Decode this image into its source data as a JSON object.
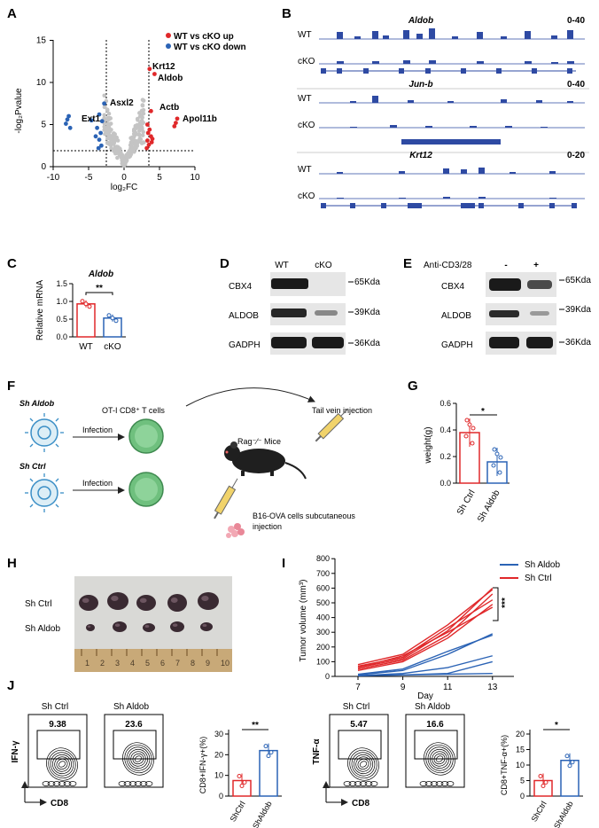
{
  "panel_labels": [
    "A",
    "B",
    "C",
    "D",
    "E",
    "F",
    "G",
    "H",
    "I",
    "J"
  ],
  "panel_a": {
    "legend": [
      "WT vs cKO up",
      "WT vs cKO down"
    ],
    "colors": {
      "up": "#e0282a",
      "down": "#2b63b5",
      "ns": "#c4c4c4"
    },
    "ylabel": "-log₂Pvalue",
    "xlabel": "log₂FC",
    "xticks": [
      "-10",
      "-5",
      "0",
      "5",
      "10"
    ],
    "yticks": [
      "0",
      "5",
      "10",
      "15"
    ],
    "genes": [
      "Krt12",
      "Aldob",
      "Asxl2",
      "Actb",
      "Ext1",
      "Apol11b"
    ]
  },
  "panel_b": {
    "tracks": [
      {
        "gene": "Aldob",
        "range": "0-40",
        "rows": [
          "WT",
          "cKO"
        ]
      },
      {
        "gene": "Jun-b",
        "range": "0-40",
        "rows": [
          "WT",
          "cKO"
        ]
      },
      {
        "gene": "Krt12",
        "range": "0-20",
        "rows": [
          "WT",
          "cKO"
        ]
      }
    ]
  },
  "panel_c": {
    "title": "Aldob",
    "ylabel": "Relative mRNA",
    "categories": [
      "WT",
      "cKO"
    ],
    "values": [
      0.93,
      0.53
    ],
    "yticks": [
      "0.0",
      "0.5",
      "1.0",
      "1.5"
    ],
    "sig": "**"
  },
  "panel_d": {
    "lanes": [
      "WT",
      "cKO"
    ],
    "proteins": [
      "CBX4",
      "ALDOB",
      "GADPH"
    ],
    "sizes": [
      "65Kda",
      "39Kda",
      "36Kda"
    ]
  },
  "panel_e": {
    "treatment": "Anti-CD3/28",
    "lanes": [
      "-",
      "+"
    ],
    "proteins": [
      "CBX4",
      "ALDOB",
      "GADPH"
    ],
    "sizes": [
      "65Kda",
      "39Kda",
      "36Kda"
    ]
  },
  "panel_f": {
    "sh1": "Sh Aldob",
    "sh2": "Sh Ctrl",
    "infection": "Infection",
    "otcells": "OT-I CD8⁺ T cells",
    "mice": "Rag⁻⁄⁻ Mice",
    "tail": "Tail vein injection",
    "b16": "B16-OVA cells subcutaneous injection"
  },
  "panel_g": {
    "ylabel": "weight(g)",
    "categories": [
      "Sh Ctrl",
      "Sh Aldob"
    ],
    "values": [
      0.38,
      0.16
    ],
    "yticks": [
      "0.0",
      "0.2",
      "0.4",
      "0.6"
    ],
    "sig": "*"
  },
  "panel_h": {
    "rows": [
      "Sh Ctrl",
      "Sh Aldob"
    ],
    "ruler": [
      "1",
      "2",
      "3",
      "4",
      "5",
      "6",
      "7",
      "8",
      "9",
      "10"
    ]
  },
  "panel_i": {
    "ylabel": "Tumor volume (mm³)",
    "xlabel": "Day",
    "legend": [
      "Sh Aldob",
      "Sh Ctrl"
    ],
    "xticks": [
      "7",
      "9",
      "11",
      "13"
    ],
    "yticks": [
      "0",
      "100",
      "200",
      "300",
      "400",
      "500",
      "600",
      "700",
      "800"
    ],
    "sig": "***"
  },
  "panel_j": {
    "left": {
      "titles": [
        "Sh Ctrl",
        "Sh Aldob"
      ],
      "values": [
        "9.38",
        "23.6"
      ],
      "yaxis": "IFN-γ",
      "xaxis": "CD8",
      "bar": {
        "ylabel": "CD8+IFN-γ+(%)",
        "categories": [
          "ShCtrl",
          "ShAldob"
        ],
        "values": [
          7.5,
          22.0
        ],
        "yticks": [
          "0",
          "10",
          "20",
          "30"
        ],
        "sig": "**"
      }
    },
    "right": {
      "titles": [
        "Sh Ctrl",
        "Sh Aldob"
      ],
      "values": [
        "5.47",
        "16.6"
      ],
      "yaxis": "TNF-α",
      "xaxis": "CD8",
      "bar": {
        "ylabel": "CD8+TNF-α+(%)",
        "categories": [
          "ShCtrl",
          "ShAldob"
        ],
        "values": [
          5.0,
          11.5
        ],
        "yticks": [
          "0",
          "5",
          "10",
          "15",
          "20"
        ],
        "sig": "*"
      }
    }
  },
  "chart_data": [
    {
      "type": "scatter",
      "title": "",
      "xlabel": "log2FC",
      "ylabel": "-log2Pvalue",
      "xlim": [
        -10,
        10
      ],
      "ylim": [
        0,
        15
      ],
      "annotated_points": [
        {
          "label": "Krt12",
          "x": 3.6,
          "y": 11.6
        },
        {
          "label": "Aldob",
          "x": 4.3,
          "y": 11.0
        },
        {
          "label": "Asxl2",
          "x": -2.8,
          "y": 7.5
        },
        {
          "label": "Actb",
          "x": 3.8,
          "y": 6.6
        },
        {
          "label": "Ext1",
          "x": -4.6,
          "y": 5.5
        },
        {
          "label": "Apol11b",
          "x": 7.4,
          "y": 5.7
        }
      ]
    },
    {
      "type": "bar",
      "title": "Aldob",
      "categories": [
        "WT",
        "cKO"
      ],
      "values": [
        0.93,
        0.53
      ],
      "ylabel": "Relative mRNA",
      "ylim": [
        0,
        1.5
      ]
    },
    {
      "type": "bar",
      "categories": [
        "Sh Ctrl",
        "Sh Aldob"
      ],
      "values": [
        0.38,
        0.16
      ],
      "ylabel": "weight(g)",
      "ylim": [
        0,
        0.6
      ]
    },
    {
      "type": "line",
      "xlabel": "Day",
      "ylabel": "Tumor volume (mm3)",
      "x": [
        7,
        9,
        11,
        13
      ],
      "ylim": [
        0,
        800
      ],
      "series": [
        {
          "name": "Sh Ctrl",
          "values": [
            60,
            120,
            310,
            600
          ]
        },
        {
          "name": "Sh Ctrl",
          "values": [
            80,
            150,
            350,
            590
          ]
        },
        {
          "name": "Sh Ctrl",
          "values": [
            50,
            110,
            280,
            560
          ]
        },
        {
          "name": "Sh Ctrl",
          "values": [
            70,
            130,
            330,
            520
          ]
        },
        {
          "name": "Sh Ctrl",
          "values": [
            40,
            100,
            260,
            490
          ]
        },
        {
          "name": "Sh Ctrl",
          "values": [
            60,
            140,
            300,
            470
          ]
        },
        {
          "name": "Sh Aldob",
          "values": [
            10,
            40,
            150,
            290
          ]
        },
        {
          "name": "Sh Aldob",
          "values": [
            15,
            50,
            170,
            280
          ]
        },
        {
          "name": "Sh Aldob",
          "values": [
            5,
            20,
            60,
            140
          ]
        },
        {
          "name": "Sh Aldob",
          "values": [
            5,
            10,
            20,
            100
          ]
        },
        {
          "name": "Sh Aldob",
          "values": [
            5,
            10,
            15,
            20
          ]
        }
      ]
    },
    {
      "type": "bar",
      "categories": [
        "ShCtrl",
        "ShAldob"
      ],
      "values": [
        7.5,
        22.0
      ],
      "ylabel": "CD8+IFN-γ+(%)",
      "ylim": [
        0,
        30
      ]
    },
    {
      "type": "bar",
      "categories": [
        "ShCtrl",
        "ShAldob"
      ],
      "values": [
        5.0,
        11.5
      ],
      "ylabel": "CD8+TNF-α+(%)",
      "ylim": [
        0,
        20
      ]
    }
  ]
}
